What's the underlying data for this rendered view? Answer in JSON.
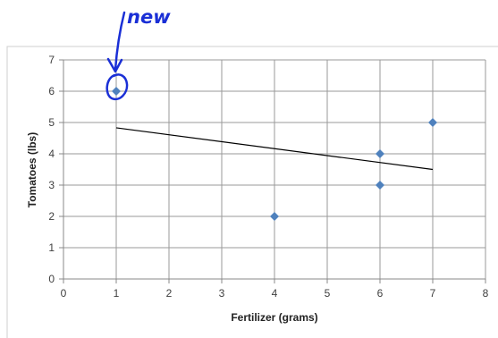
{
  "chart_data": {
    "type": "scatter",
    "title": "",
    "xlabel": "Fertilizer (grams)",
    "ylabel": "Tomatoes (lbs)",
    "xlim": [
      0,
      8
    ],
    "ylim": [
      0,
      7
    ],
    "x_ticks": [
      "0",
      "1",
      "2",
      "3",
      "4",
      "5",
      "6",
      "7",
      "8"
    ],
    "y_ticks": [
      "0",
      "1",
      "2",
      "3",
      "4",
      "5",
      "6",
      "7"
    ],
    "grid": "vertical and horizontal major gridlines",
    "legend": "none",
    "series": [
      {
        "points": [
          {
            "x": 1,
            "y": 6
          },
          {
            "x": 4,
            "y": 2
          },
          {
            "x": 6,
            "y": 4
          },
          {
            "x": 6,
            "y": 3
          },
          {
            "x": 7,
            "y": 5
          }
        ],
        "marker": "diamond",
        "color": "#4f81bd"
      }
    ],
    "trendline": {
      "type": "linear",
      "points": [
        {
          "x": 1,
          "y": 4.83
        },
        {
          "x": 7,
          "y": 3.5
        }
      ],
      "color": "#000000"
    },
    "annotations": [
      {
        "text": "new",
        "target": {
          "x": 1,
          "y": 6
        },
        "style": "handwritten circle and arrow",
        "color": "#1a2fd6"
      }
    ]
  }
}
